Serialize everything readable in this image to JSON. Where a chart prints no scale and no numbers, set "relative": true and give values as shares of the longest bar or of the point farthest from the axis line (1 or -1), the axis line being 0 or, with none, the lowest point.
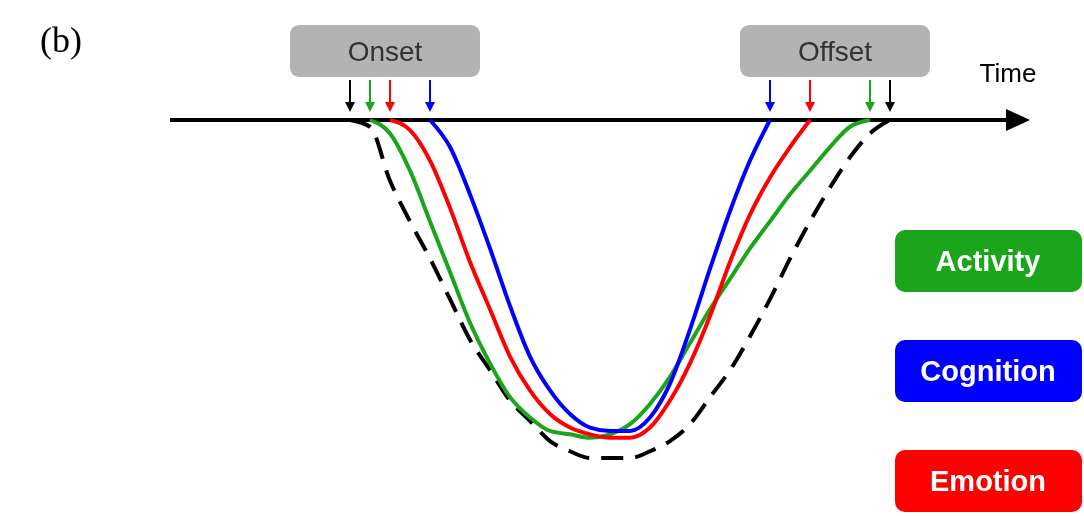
{
  "chart_data": {
    "type": "line",
    "relative": true,
    "xlabel": "Time",
    "legend": "right",
    "annotations": [
      "(b)",
      "Onset",
      "Offset"
    ],
    "categories": [
      null,
      null,
      null,
      null,
      null,
      null,
      null,
      null,
      null,
      null,
      null,
      null,
      null,
      null,
      null,
      null,
      null,
      null,
      null,
      null,
      null,
      null,
      null,
      null,
      null,
      null,
      null,
      null
    ],
    "series": [
      {
        "color": "#000000",
        "line_style": "dashed",
        "values": [
          0,
          -0.02,
          -0.18,
          -0.3,
          -0.41,
          -0.53,
          -0.65,
          -0.74,
          -0.83,
          -0.89,
          -0.95,
          -0.98,
          -1,
          -1,
          -1,
          -0.98,
          -0.95,
          -0.9,
          -0.82,
          -0.74,
          -0.64,
          -0.53,
          -0.41,
          -0.3,
          -0.2,
          -0.11,
          -0.04,
          0
        ]
      },
      {
        "name": "Activity",
        "color": "#1aa51a",
        "values": [
          null,
          0,
          -0.04,
          -0.15,
          -0.3,
          -0.45,
          -0.6,
          -0.72,
          -0.82,
          -0.88,
          -0.92,
          -0.93,
          -0.94,
          -0.93,
          -0.9,
          -0.84,
          -0.76,
          -0.66,
          -0.56,
          -0.47,
          -0.38,
          -0.3,
          -0.22,
          -0.15,
          -0.08,
          -0.02,
          0,
          null
        ]
      },
      {
        "name": "Cognition",
        "color": "#0000ff",
        "values": [
          null,
          null,
          null,
          null,
          0,
          -0.08,
          -0.22,
          -0.38,
          -0.55,
          -0.7,
          -0.8,
          -0.87,
          -0.91,
          -0.92,
          -0.92,
          -0.88,
          -0.78,
          -0.62,
          -0.44,
          -0.27,
          -0.12,
          0,
          null,
          null,
          null,
          null,
          null,
          null
        ]
      },
      {
        "name": "Emotion",
        "color": "#ff0000",
        "values": [
          null,
          null,
          0,
          -0.03,
          -0.12,
          -0.26,
          -0.42,
          -0.56,
          -0.7,
          -0.8,
          -0.87,
          -0.91,
          -0.93,
          -0.94,
          -0.94,
          -0.91,
          -0.83,
          -0.72,
          -0.58,
          -0.42,
          -0.28,
          -0.17,
          -0.08,
          0,
          null,
          null,
          null,
          null
        ]
      }
    ]
  }
}
